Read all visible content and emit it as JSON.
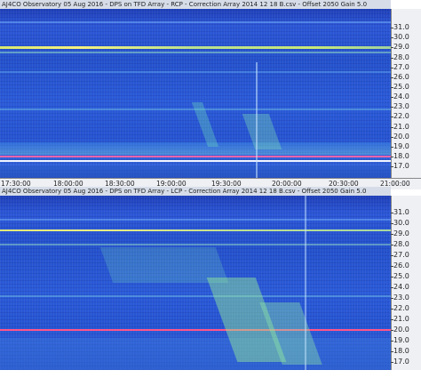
{
  "panels": [
    {
      "title": "AJ4CO Observatory 05 Aug 2016  -  DPS on TFD Array  -  RCP  -  Correction Array 2014 12 18 B.csv  -  Offset 2050  Gain 5.0",
      "y_ticks": [
        "31.0",
        "30.0",
        "29.0",
        "28.0",
        "27.0",
        "26.0",
        "25.0",
        "24.0",
        "23.0",
        "22.0",
        "21.0",
        "20.0",
        "19.0",
        "18.0",
        "17.0"
      ],
      "x_ticks": [
        "17:30:00",
        "18:00:00",
        "18:30:00",
        "19:00:00",
        "19:30:00",
        "20:00:00",
        "20:30:00",
        "21:00:00"
      ]
    },
    {
      "title": "AJ4CO Observatory 05 Aug 2016  -  DPS on TFD Array  -  LCP  -  Correction Array 2014 12 18 B.csv  -  Offset 2050  Gain 5.0",
      "y_ticks": [
        "31.0",
        "30.0",
        "29.0",
        "28.0",
        "27.0",
        "26.0",
        "25.0",
        "24.0",
        "23.0",
        "22.0",
        "21.0",
        "20.0",
        "19.0",
        "18.0",
        "17.0"
      ],
      "x_ticks": []
    }
  ],
  "colors": {
    "background": "#2451cc",
    "interference_band": "#f4f080",
    "red_line": "#ff3366",
    "burst": "#5fe0a0"
  }
}
